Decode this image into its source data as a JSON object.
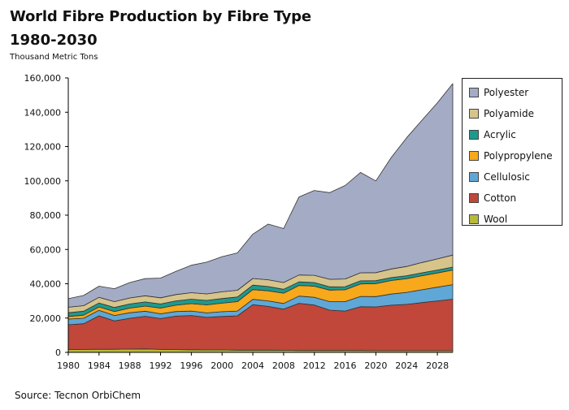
{
  "header": {
    "title": "World Fibre Production by Fibre Type",
    "subtitle": "1980-2030",
    "unit_label": "Thousand Metric Tons"
  },
  "footer": {
    "source": "Source: Tecnon OrbiChem"
  },
  "chart_data": {
    "type": "area",
    "stacked": true,
    "x": [
      1980,
      1982,
      1984,
      1986,
      1988,
      1990,
      1992,
      1994,
      1996,
      1998,
      2000,
      2002,
      2004,
      2006,
      2008,
      2010,
      2012,
      2014,
      2016,
      2018,
      2020,
      2022,
      2024,
      2026,
      2028,
      2030
    ],
    "series": [
      {
        "name": "Wool",
        "color": "#b7b93a",
        "values": [
          1600,
          1700,
          1800,
          1800,
          1900,
          2000,
          1700,
          1600,
          1500,
          1400,
          1400,
          1300,
          1300,
          1300,
          1200,
          1100,
          1100,
          1100,
          1100,
          1100,
          1000,
          1000,
          1000,
          1000,
          1000,
          1000
        ]
      },
      {
        "name": "Cotton",
        "color": "#c0473a",
        "values": [
          14500,
          15000,
          19500,
          16500,
          18000,
          19000,
          18000,
          19500,
          20000,
          19000,
          19500,
          20000,
          26500,
          25500,
          24000,
          27500,
          26500,
          23500,
          23000,
          25500,
          25500,
          26500,
          27000,
          28000,
          29000,
          30000
        ]
      },
      {
        "name": "Cellulosic",
        "color": "#5fa7d6",
        "values": [
          3300,
          3200,
          3200,
          3200,
          3200,
          3000,
          2800,
          2700,
          2600,
          2600,
          2800,
          2800,
          3100,
          3200,
          3300,
          4200,
          4500,
          5000,
          5500,
          6000,
          6000,
          6500,
          7000,
          7500,
          8000,
          8500
        ]
      },
      {
        "name": "Polypropylene",
        "color": "#f7a81b",
        "values": [
          1500,
          1800,
          2000,
          2300,
          2700,
          3000,
          3300,
          3700,
          4300,
          4700,
          5000,
          5500,
          5700,
          5900,
          6000,
          6200,
          6500,
          6700,
          6900,
          7300,
          7600,
          7900,
          8000,
          8200,
          8300,
          8500
        ]
      },
      {
        "name": "Acrylic",
        "color": "#1d9a8e",
        "values": [
          2200,
          2300,
          2300,
          2400,
          2400,
          2400,
          2400,
          2500,
          2600,
          2600,
          2700,
          2700,
          2600,
          2500,
          2300,
          2100,
          2100,
          1900,
          1800,
          1800,
          1700,
          1700,
          1700,
          1700,
          1700,
          1700
        ]
      },
      {
        "name": "Polyamide",
        "color": "#d7c48a",
        "values": [
          3200,
          3200,
          3300,
          3400,
          3500,
          3600,
          3600,
          3700,
          3800,
          3800,
          3900,
          3900,
          3900,
          3900,
          3900,
          4000,
          4200,
          4400,
          4500,
          4700,
          4700,
          5000,
          5400,
          6000,
          6500,
          7000
        ]
      },
      {
        "name": "Polyester",
        "color": "#a4abc5",
        "values": [
          5000,
          6000,
          6500,
          7500,
          9000,
          10000,
          11500,
          13500,
          16000,
          18500,
          20500,
          21800,
          25800,
          32500,
          31500,
          45500,
          49500,
          50500,
          54500,
          58500,
          53500,
          65000,
          75000,
          83000,
          91000,
          100000
        ]
      }
    ],
    "legend_order": [
      "Polyester",
      "Polyamide",
      "Acrylic",
      "Polypropylene",
      "Cellulosic",
      "Cotton",
      "Wool"
    ],
    "xlim": [
      1980,
      2030
    ],
    "ylim": [
      0,
      160000
    ],
    "x_ticks": [
      1980,
      1984,
      1988,
      1992,
      1996,
      2000,
      2004,
      2008,
      2012,
      2016,
      2020,
      2024,
      2028
    ],
    "y_ticks": [
      "0",
      "20,000",
      "40,000",
      "60,000",
      "80,000",
      "100,000",
      "120,000",
      "140,000",
      "160,000"
    ],
    "ylabel": "Thousand Metric Tons",
    "grid": false,
    "legend_position": "right"
  }
}
